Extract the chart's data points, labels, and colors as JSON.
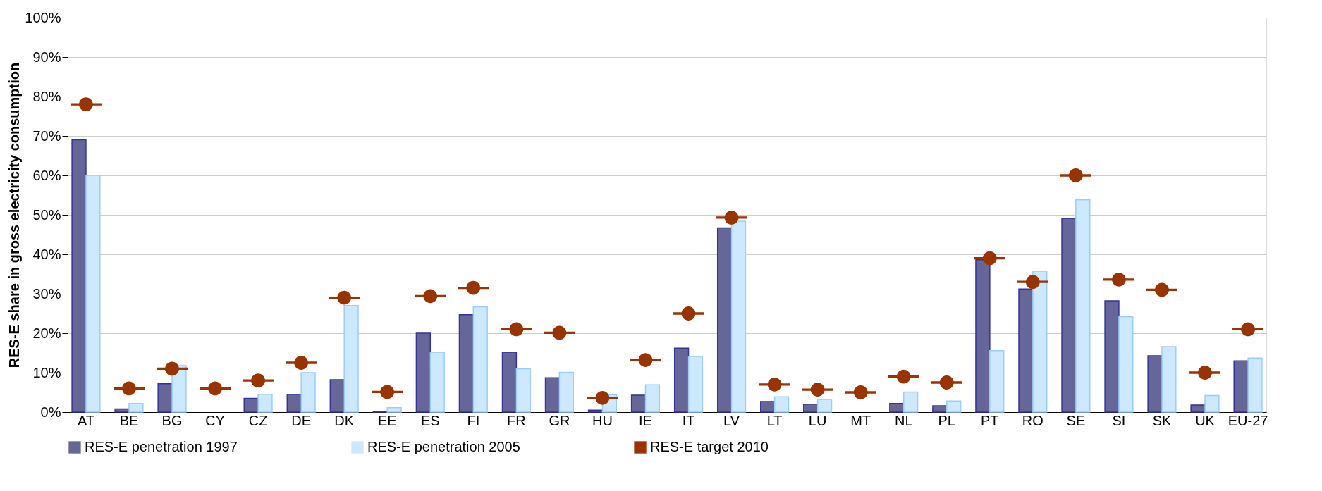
{
  "chart_data": {
    "type": "bar",
    "ylabel": "RES-E share in gross electricity consumption",
    "categories": [
      "AT",
      "BE",
      "BG",
      "CY",
      "CZ",
      "DE",
      "DK",
      "EE",
      "ES",
      "FI",
      "FR",
      "GR",
      "HU",
      "IE",
      "IT",
      "LV",
      "LT",
      "LU",
      "MT",
      "NL",
      "PL",
      "PT",
      "RO",
      "SE",
      "SI",
      "SK",
      "UK",
      "EU-27"
    ],
    "series": [
      {
        "name": "RES-E penetration 1997",
        "color": "#666699",
        "values": [
          69,
          0.8,
          7.2,
          0,
          3.5,
          4.5,
          8.2,
          0.2,
          20,
          24.7,
          15.2,
          8.7,
          0.5,
          4.3,
          16.2,
          46.7,
          2.7,
          2,
          0,
          2.2,
          1.6,
          38.6,
          31.2,
          49.1,
          28.2,
          14.3,
          1.8,
          13
        ]
      },
      {
        "name": "RES-E penetration 2005",
        "color": "#cce9ff",
        "values": [
          60,
          2.2,
          11.8,
          0,
          4.5,
          10,
          27,
          1.1,
          15.2,
          26.7,
          11,
          10.1,
          4.4,
          6.9,
          14.1,
          48.4,
          3.9,
          3.2,
          0,
          5.1,
          2.8,
          15.6,
          35.7,
          53.8,
          24.2,
          16.6,
          4.2,
          13.7
        ]
      },
      {
        "name": "RES-E target 2010",
        "color": "#993300",
        "type": "scatter",
        "marker": "circle",
        "values": [
          78,
          6,
          11,
          6,
          8,
          12.5,
          29,
          5.1,
          29.4,
          31.5,
          21,
          20.1,
          3.6,
          13.2,
          25,
          49.3,
          7,
          5.7,
          5,
          9,
          7.5,
          39,
          33,
          60,
          33.6,
          31,
          10,
          21
        ]
      }
    ],
    "ylim": [
      0,
      100
    ],
    "yticks": [
      {
        "value": 0,
        "label": "0%"
      },
      {
        "value": 10,
        "label": "10%"
      },
      {
        "value": 20,
        "label": "20%"
      },
      {
        "value": 30,
        "label": "30%"
      },
      {
        "value": 40,
        "label": "40%"
      },
      {
        "value": 50,
        "label": "50%"
      },
      {
        "value": 60,
        "label": "60%"
      },
      {
        "value": 70,
        "label": "70%"
      },
      {
        "value": 80,
        "label": "80%"
      },
      {
        "value": 90,
        "label": "90%"
      },
      {
        "value": 100,
        "label": "100%"
      }
    ],
    "grid": "y",
    "legend": "bottom"
  }
}
